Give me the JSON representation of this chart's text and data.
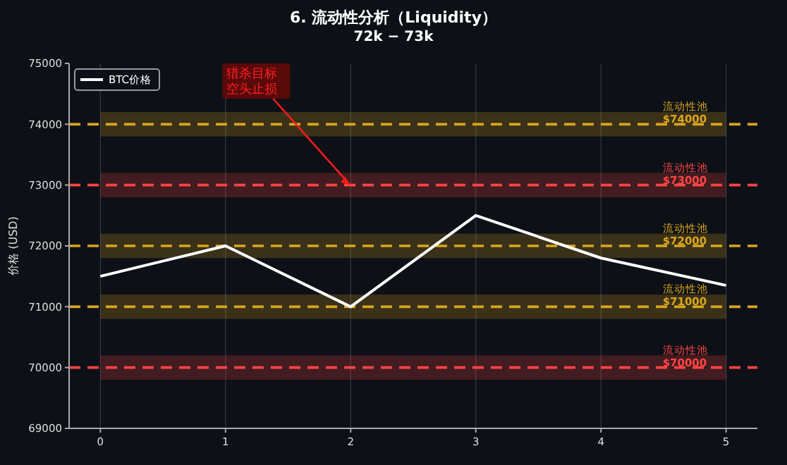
{
  "chart_data": {
    "type": "line",
    "title": "6. 流动性分析（Liquidity）",
    "subtitle": "72k − 73k",
    "ylabel": "价格 (USD)",
    "x": [
      0,
      1,
      2,
      3,
      4,
      5
    ],
    "series": [
      {
        "name": "BTC价格",
        "color": "#ffffff",
        "values": [
          71500,
          72000,
          71000,
          72500,
          71800,
          71350
        ]
      }
    ],
    "xlim": [
      -0.25,
      5.25
    ],
    "xticks": [
      0,
      1,
      2,
      3,
      4,
      5
    ],
    "ylim": [
      69000,
      75000
    ],
    "yticks": [
      69000,
      70000,
      71000,
      72000,
      73000,
      74000,
      75000
    ],
    "grid": "x",
    "legend": "top left",
    "line_style": "solid",
    "marker": "none",
    "ref_lines": [
      {
        "axis": "y",
        "value": 74000,
        "label": "流动性池\n$74000",
        "color": "#daa520",
        "line_style": "dashed"
      },
      {
        "axis": "y",
        "value": 73000,
        "label": "流动性池\n$73000",
        "color": "#ff4444",
        "line_style": "dashed"
      },
      {
        "axis": "y",
        "value": 72000,
        "label": "流动性池\n$72000",
        "color": "#daa520",
        "line_style": "dashed"
      },
      {
        "axis": "y",
        "value": 71000,
        "label": "流动性池\n$71000",
        "color": "#daa520",
        "line_style": "dashed"
      },
      {
        "axis": "y",
        "value": 70000,
        "label": "流动性池\n$70000",
        "color": "#ff4444",
        "line_style": "dashed"
      }
    ],
    "bands": [
      {
        "axis": "y",
        "from": 73800,
        "to": 74200,
        "color": "#daa520"
      },
      {
        "axis": "y",
        "from": 72800,
        "to": 73200,
        "color": "#ff4444"
      },
      {
        "axis": "y",
        "from": 71800,
        "to": 72200,
        "color": "#daa520"
      },
      {
        "axis": "y",
        "from": 70800,
        "to": 71200,
        "color": "#daa520"
      },
      {
        "axis": "y",
        "from": 69800,
        "to": 70200,
        "color": "#ff4444"
      }
    ],
    "annotations": [
      {
        "text": "猎杀目标空头止损",
        "x": 2,
        "y": 73000
      }
    ]
  }
}
